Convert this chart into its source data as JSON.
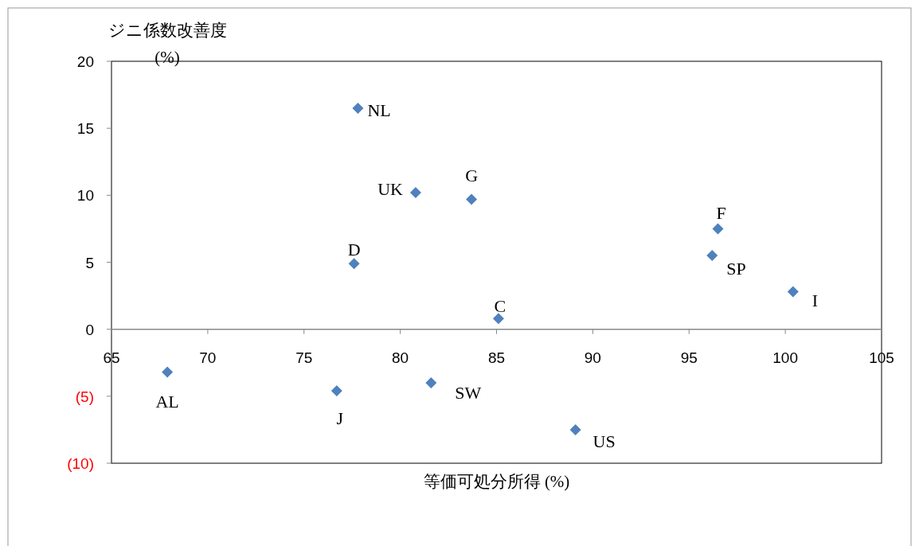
{
  "chart_data": {
    "type": "scatter",
    "xlabel": "等価可処分所得 (%)",
    "ylabel": "ジニ係数改善度 (%)",
    "x": [
      77.8,
      80.8,
      83.7,
      77.6,
      85.1,
      96.5,
      96.2,
      100.4,
      67.9,
      76.7,
      81.6,
      89.1
    ],
    "series": [
      {
        "color": "#4f81bd",
        "values": [
          16.5,
          10.2,
          9.7,
          4.9,
          0.8,
          7.5,
          5.5,
          2.8,
          -3.2,
          -4.6,
          -4.0,
          -7.5
        ]
      }
    ],
    "xlim": [
      65,
      105
    ],
    "xticks": [
      65,
      70,
      75,
      80,
      85,
      90,
      95,
      100,
      105
    ],
    "ylim": [
      -10,
      20
    ],
    "yticks": [
      {
        "value": -10,
        "label": "(10)"
      },
      {
        "value": -5,
        "label": "(5)"
      },
      0,
      5,
      10,
      15,
      20
    ],
    "marker": "diamond",
    "grid": false,
    "annotations": [
      {
        "text": "NL",
        "x": 77.8,
        "y": 16.5
      },
      {
        "text": "UK",
        "x": 80.8,
        "y": 10.2
      },
      {
        "text": "G",
        "x": 83.7,
        "y": 9.7
      },
      {
        "text": "D",
        "x": 77.6,
        "y": 4.9
      },
      {
        "text": "C",
        "x": 85.1,
        "y": 0.8
      },
      {
        "text": "F",
        "x": 96.5,
        "y": 7.5
      },
      {
        "text": "SP",
        "x": 96.2,
        "y": 5.5
      },
      {
        "text": "I",
        "x": 100.4,
        "y": 2.8
      },
      {
        "text": "AL",
        "x": 67.9,
        "y": -3.2
      },
      {
        "text": "J",
        "x": 76.7,
        "y": -4.6
      },
      {
        "text": "SW",
        "x": 81.6,
        "y": -4.0
      },
      {
        "text": "US",
        "x": 89.1,
        "y": -7.5
      }
    ]
  }
}
